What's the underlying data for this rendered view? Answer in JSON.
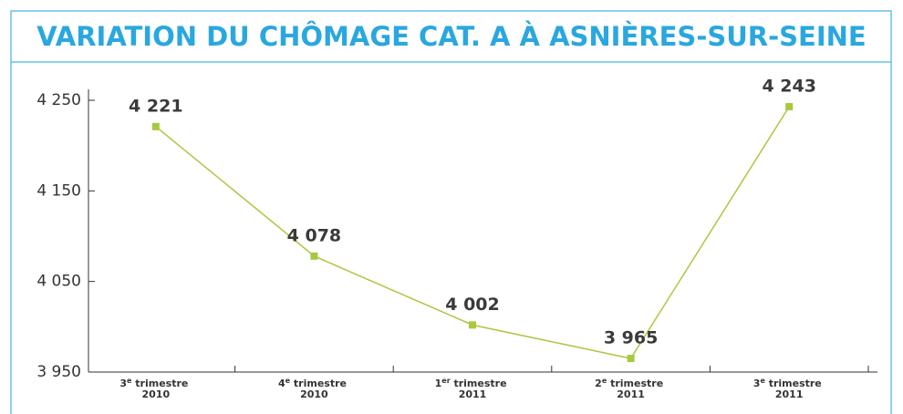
{
  "chart_data": {
    "type": "line",
    "title": "VARIATION DU CHÔMAGE CAT. A À ASNIÈRES-SUR-SEINE",
    "categories": [
      "3e trimestre 2010",
      "4e trimestre 2010",
      "1er trimestre 2011",
      "2e trimestre 2011",
      "3e trimestre 2011"
    ],
    "series": [
      {
        "name": "Chômage cat. A",
        "color": "#a8c93e",
        "values": [
          4221,
          4078,
          4002,
          3965,
          4243
        ],
        "value_labels": [
          "4 221",
          "4 078",
          "4 002",
          "3 965",
          "4 243"
        ]
      }
    ],
    "ylim": [
      3950,
      4250
    ],
    "yticks": [
      {
        "value": 3950,
        "label": "3 950"
      },
      {
        "value": 4050,
        "label": "4 050"
      },
      {
        "value": 4150,
        "label": "4 150"
      },
      {
        "value": 4250,
        "label": "4 250"
      }
    ],
    "grid": false,
    "legend": false
  }
}
